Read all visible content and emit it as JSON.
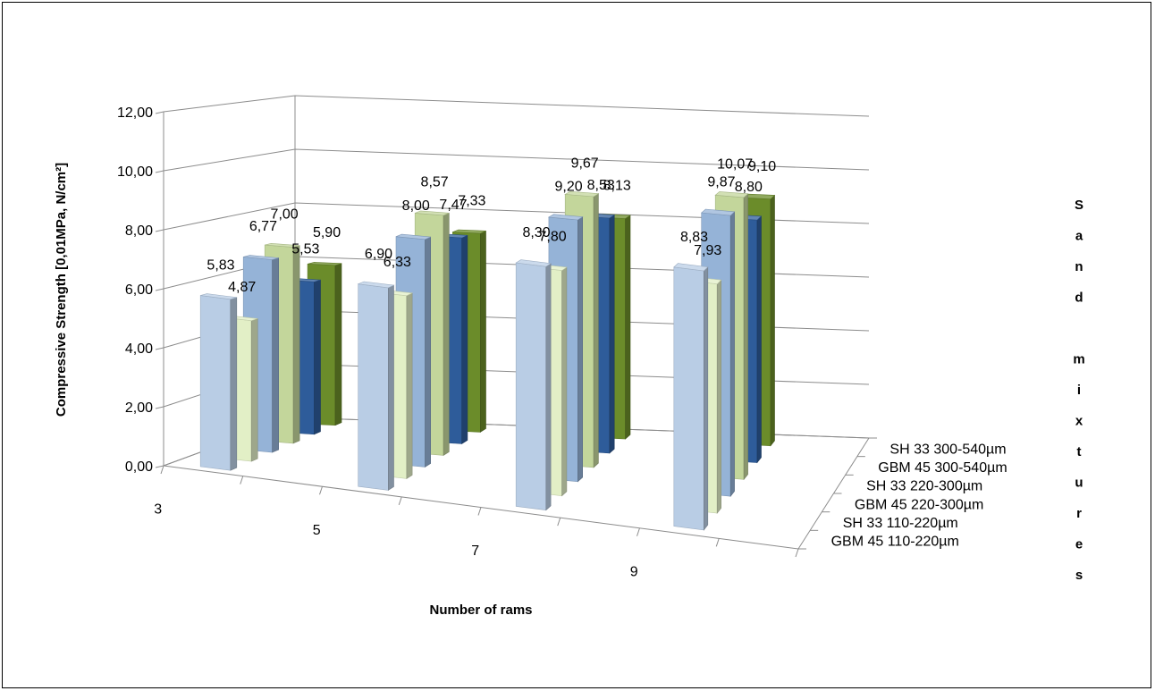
{
  "chart_data": {
    "type": "bar",
    "variant": "3d-clustered-column",
    "xlabel": "Number of rams",
    "ylabel": "Compressive Strength [0,01MPa, N/cm²]",
    "zlabel": "Sand mixtures",
    "ylim": [
      0,
      12
    ],
    "yticks": [
      "0,00",
      "2,00",
      "4,00",
      "6,00",
      "8,00",
      "10,00",
      "12,00"
    ],
    "categories": [
      "3",
      "5",
      "7",
      "9"
    ],
    "series": [
      {
        "name": "GBM 45 110-220µm",
        "values": [
          5.83,
          6.9,
          8.3,
          8.83
        ],
        "labels": [
          "5,83",
          "6,90",
          "8,30",
          "8,83"
        ],
        "color": "#b9cde5"
      },
      {
        "name": "SH 33 110-220µm",
        "values": [
          4.87,
          6.33,
          7.8,
          7.93
        ],
        "labels": [
          "4,87",
          "6,33",
          "7,80",
          "7,93"
        ],
        "color": "#e2efc6"
      },
      {
        "name": "GBM 45 220-300µm",
        "values": [
          6.77,
          8.0,
          9.2,
          9.87
        ],
        "labels": [
          "6,77",
          "8,00",
          "9,20",
          "9,87"
        ],
        "color": "#95b3d7"
      },
      {
        "name": "SH 33 220-300µm",
        "values": [
          7.0,
          8.57,
          9.67,
          10.07
        ],
        "labels": [
          "7,00",
          "8,57",
          "9,67",
          "10,07"
        ],
        "color": "#c3d69b"
      },
      {
        "name": "GBM 45 300-540µm",
        "values": [
          5.53,
          7.47,
          8.53,
          8.8
        ],
        "labels": [
          "5,53",
          "7,47",
          "8,53",
          "8,80"
        ],
        "color": "#2e5c9a"
      },
      {
        "name": "SH 33 300-540µm",
        "values": [
          5.9,
          7.33,
          8.13,
          9.1
        ],
        "labels": [
          "5,90",
          "7,33",
          "8,13",
          "9,10"
        ],
        "color": "#6b8c2a"
      }
    ],
    "grid": true
  }
}
